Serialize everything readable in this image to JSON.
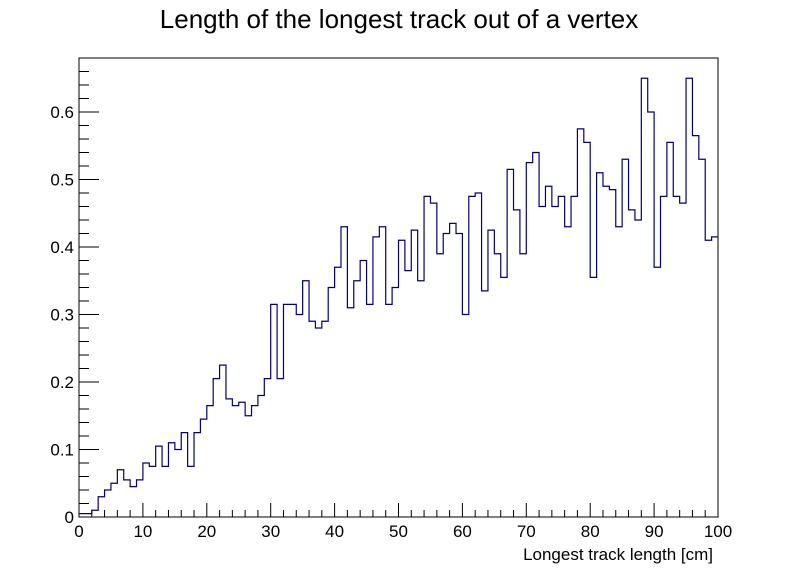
{
  "chart_data": {
    "type": "histogram",
    "title": "Length of the longest track out of a vertex",
    "xlabel": "Longest track length [cm]",
    "ylabel": "",
    "xlim": [
      0,
      100
    ],
    "ylim": [
      0,
      0.68
    ],
    "bin_width": 1,
    "x_tick_labels": [
      "0",
      "10",
      "20",
      "30",
      "40",
      "50",
      "60",
      "70",
      "80",
      "90",
      "100"
    ],
    "y_tick_labels": [
      "0",
      "0.1",
      "0.2",
      "0.3",
      "0.4",
      "0.5",
      "0.6"
    ],
    "x_ticks": [
      0,
      10,
      20,
      30,
      40,
      50,
      60,
      70,
      80,
      90,
      100
    ],
    "y_ticks": [
      0,
      0.1,
      0.2,
      0.3,
      0.4,
      0.5,
      0.6
    ],
    "line_color": "#000080",
    "grid": false,
    "values": [
      0.005,
      0.005,
      0.01,
      0.03,
      0.04,
      0.05,
      0.07,
      0.055,
      0.045,
      0.055,
      0.08,
      0.075,
      0.105,
      0.075,
      0.11,
      0.1,
      0.125,
      0.075,
      0.125,
      0.145,
      0.165,
      0.205,
      0.225,
      0.175,
      0.165,
      0.17,
      0.15,
      0.165,
      0.18,
      0.205,
      0.315,
      0.205,
      0.315,
      0.315,
      0.3,
      0.35,
      0.29,
      0.28,
      0.29,
      0.34,
      0.37,
      0.43,
      0.31,
      0.35,
      0.38,
      0.315,
      0.415,
      0.43,
      0.315,
      0.34,
      0.41,
      0.365,
      0.425,
      0.35,
      0.475,
      0.465,
      0.39,
      0.42,
      0.435,
      0.42,
      0.3,
      0.475,
      0.48,
      0.335,
      0.425,
      0.39,
      0.355,
      0.515,
      0.455,
      0.39,
      0.525,
      0.54,
      0.46,
      0.49,
      0.46,
      0.475,
      0.43,
      0.475,
      0.575,
      0.555,
      0.355,
      0.51,
      0.49,
      0.485,
      0.43,
      0.53,
      0.455,
      0.44,
      0.65,
      0.6,
      0.37,
      0.475,
      0.555,
      0.475,
      0.465,
      0.65,
      0.565,
      0.53,
      0.41,
      0.415
    ]
  }
}
